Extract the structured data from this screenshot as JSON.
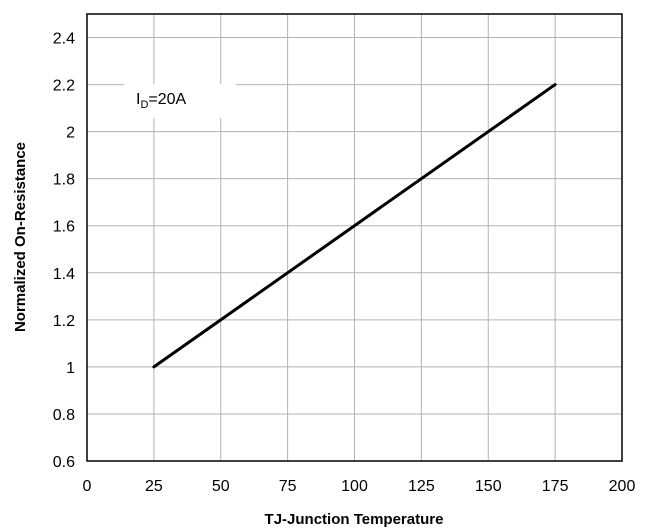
{
  "chart_data": {
    "type": "line",
    "title": "",
    "xlabel": "TJ-Junction Temperature",
    "ylabel": "Normalized On-Resistance",
    "xlim": [
      0,
      200
    ],
    "ylim": [
      0.6,
      2.5
    ],
    "xticks": [
      0,
      25,
      50,
      75,
      100,
      125,
      150,
      175,
      200
    ],
    "yticks": [
      0.6,
      0.8,
      1,
      1.2,
      1.4,
      1.6,
      1.8,
      2,
      2.2,
      2.4
    ],
    "xtick_labels": [
      "0",
      "25",
      "50",
      "75",
      "100",
      "125",
      "150",
      "175",
      "200"
    ],
    "ytick_labels": [
      "0.6",
      "0.8",
      "1",
      "1.2",
      "1.4",
      "1.6",
      "1.8",
      "2",
      "2.2",
      "2.4"
    ],
    "grid": true,
    "series": [
      {
        "x": [
          25,
          175
        ],
        "y": [
          1.0,
          2.2
        ],
        "color": "#000000"
      }
    ],
    "annotation": {
      "main": "I",
      "sub": "D",
      "rest": "=20A"
    }
  }
}
